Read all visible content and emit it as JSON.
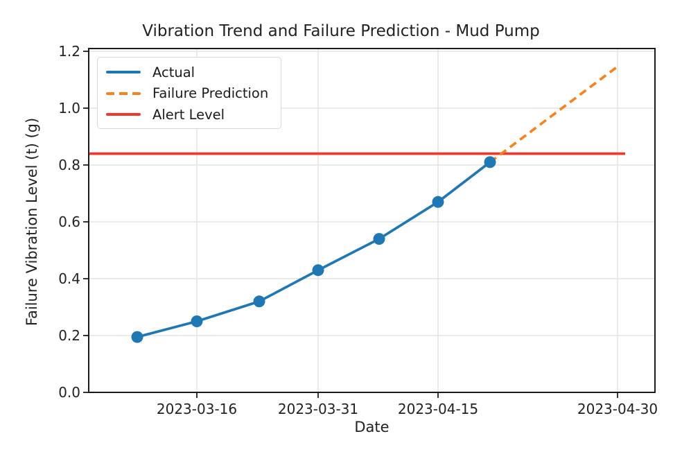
{
  "chart_data": {
    "type": "line",
    "title": "Vibration Trend and Failure Prediction - Mud Pump",
    "xlabel": "Date",
    "ylabel": "Failure Vibration Level (t) (g)",
    "x_tick_labels": [
      "2023-03-16",
      "2023-03-31",
      "2023-04-15",
      "2023-04-30"
    ],
    "y_tick_labels": [
      "0.0",
      "0.2",
      "0.4",
      "0.6",
      "0.8",
      "1.0",
      "1.2"
    ],
    "ylim": [
      0.0,
      1.2
    ],
    "grid": true,
    "legend_position": "upper left",
    "series": [
      {
        "name": "Actual",
        "type": "line",
        "style": "solid",
        "marker": "circle",
        "color": "#1f77b4",
        "x": [
          "2023-03-09",
          "2023-03-16",
          "2023-03-23",
          "2023-03-31",
          "2023-04-08",
          "2023-04-15",
          "2023-04-22"
        ],
        "values": [
          0.195,
          0.25,
          0.32,
          0.43,
          0.54,
          0.67,
          0.81
        ]
      },
      {
        "name": "Failure Prediction",
        "type": "line",
        "style": "dashed",
        "marker": "none",
        "color": "#f8821d",
        "x": [
          "2023-04-22",
          "2023-04-26",
          "2023-04-30"
        ],
        "values": [
          0.81,
          0.98,
          1.15
        ]
      },
      {
        "name": "Alert Level",
        "type": "hline",
        "style": "solid",
        "marker": "none",
        "color": "#ee3a2d",
        "value": 0.84
      }
    ],
    "colors": {
      "grid": "#e3e3e3",
      "spine": "#1b1b1b"
    }
  }
}
